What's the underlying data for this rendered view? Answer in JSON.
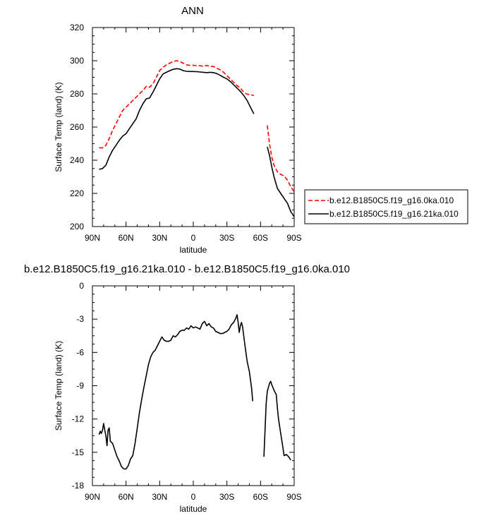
{
  "chart_data": [
    {
      "type": "line",
      "title": "ANN",
      "xlabel": "latitude",
      "ylabel": "Surface Temp (land) (K)",
      "xlim": [
        90,
        -90
      ],
      "ylim": [
        200,
        320
      ],
      "x_ticks": [
        90,
        60,
        30,
        0,
        -30,
        -60,
        -90
      ],
      "x_tick_labels": [
        "90N",
        "60N",
        "30N",
        "0",
        "30S",
        "60S",
        "90S"
      ],
      "y_ticks": [
        200,
        220,
        240,
        260,
        280,
        300,
        320
      ],
      "y_tick_labels": [
        "200",
        "220",
        "240",
        "260",
        "280",
        "300",
        "320"
      ],
      "legend_position": "right",
      "series": [
        {
          "name": "b.e12.B1850C5.f19_g16.0ka.010",
          "color": "#ff0000",
          "style": "dashed",
          "segments": [
            [
              [
                84,
                247.5
              ],
              [
                81,
                247.5
              ],
              [
                78,
                249
              ],
              [
                75,
                253
              ],
              [
                72,
                258
              ],
              [
                69,
                262
              ],
              [
                66,
                266
              ],
              [
                63,
                270
              ],
              [
                60,
                272
              ],
              [
                57,
                274
              ],
              [
                54,
                276
              ],
              [
                51,
                278
              ],
              [
                48,
                280
              ],
              [
                45,
                282
              ],
              [
                42,
                284.5
              ],
              [
                39,
                284
              ],
              [
                36,
                286
              ],
              [
                33,
                290
              ],
              [
                30,
                294
              ],
              [
                27,
                296
              ],
              [
                24,
                297.5
              ],
              [
                21,
                298.5
              ],
              [
                18,
                299.5
              ],
              [
                15,
                300
              ],
              [
                12,
                299.5
              ],
              [
                9,
                298.5
              ],
              [
                6,
                297.5
              ],
              [
                3,
                297.2
              ],
              [
                0,
                297.2
              ],
              [
                -3,
                297
              ],
              [
                -6,
                297
              ],
              [
                -9,
                296.5
              ],
              [
                -12,
                297.2
              ],
              [
                -15,
                296.5
              ],
              [
                -18,
                296.5
              ],
              [
                -21,
                295.5
              ],
              [
                -24,
                294.5
              ],
              [
                -27,
                293
              ],
              [
                -30,
                291
              ],
              [
                -33,
                289
              ],
              [
                -36,
                287
              ],
              [
                -39,
                285
              ],
              [
                -42,
                283.5
              ],
              [
                -45,
                281
              ],
              [
                -48,
                279.8
              ],
              [
                -51,
                279.5
              ],
              [
                -54,
                279
              ]
            ],
            [
              [
                -66,
                261
              ],
              [
                -68,
                250
              ],
              [
                -70,
                242
              ],
              [
                -72,
                237
              ],
              [
                -75,
                233
              ],
              [
                -78,
                231.5
              ],
              [
                -81,
                230.5
              ],
              [
                -84,
                228
              ],
              [
                -87,
                224
              ],
              [
                -90,
                221
              ]
            ]
          ]
        },
        {
          "name": "b.e12.B1850C5.f19_g16.21ka.010",
          "color": "#000000",
          "style": "solid",
          "segments": [
            [
              [
                84,
                234.5
              ],
              [
                81,
                235
              ],
              [
                78,
                237
              ],
              [
                75,
                242
              ],
              [
                72,
                246
              ],
              [
                69,
                249
              ],
              [
                66,
                252
              ],
              [
                63,
                254.5
              ],
              [
                60,
                256
              ],
              [
                57,
                259
              ],
              [
                54,
                262
              ],
              [
                51,
                265
              ],
              [
                48,
                270
              ],
              [
                45,
                274
              ],
              [
                42,
                277
              ],
              [
                39,
                277.5
              ],
              [
                36,
                281
              ],
              [
                33,
                285
              ],
              [
                30,
                289
              ],
              [
                27,
                292
              ],
              [
                24,
                293
              ],
              [
                21,
                294
              ],
              [
                18,
                294.8
              ],
              [
                15,
                295.2
              ],
              [
                12,
                295
              ],
              [
                9,
                294
              ],
              [
                6,
                293.6
              ],
              [
                3,
                293.5
              ],
              [
                0,
                293.5
              ],
              [
                -3,
                293.4
              ],
              [
                -6,
                293.2
              ],
              [
                -9,
                293
              ],
              [
                -12,
                292.8
              ],
              [
                -15,
                293
              ],
              [
                -18,
                292.8
              ],
              [
                -21,
                292.2
              ],
              [
                -24,
                291.2
              ],
              [
                -27,
                290
              ],
              [
                -30,
                289
              ],
              [
                -33,
                287.5
              ],
              [
                -36,
                285.5
              ],
              [
                -39,
                283.5
              ],
              [
                -42,
                281.5
              ],
              [
                -45,
                279
              ],
              [
                -48,
                276
              ],
              [
                -51,
                272
              ],
              [
                -54,
                268
              ]
            ],
            [
              [
                -66,
                248
              ],
              [
                -68,
                243
              ],
              [
                -70,
                236
              ],
              [
                -72,
                230
              ],
              [
                -75,
                223
              ],
              [
                -78,
                220
              ],
              [
                -81,
                217
              ],
              [
                -84,
                214
              ],
              [
                -87,
                209
              ],
              [
                -90,
                206
              ]
            ]
          ]
        }
      ]
    },
    {
      "type": "line",
      "title": "b.e12.B1850C5.f19_g16.21ka.010 - b.e12.B1850C5.f19_g16.0ka.010",
      "xlabel": "latitude",
      "ylabel": "Surface Temp (land) (K)",
      "xlim": [
        90,
        -90
      ],
      "ylim": [
        -18,
        0
      ],
      "x_ticks": [
        90,
        60,
        30,
        0,
        -30,
        -60,
        -90
      ],
      "x_tick_labels": [
        "90N",
        "60N",
        "30N",
        "0",
        "30S",
        "60S",
        "90S"
      ],
      "y_ticks": [
        -18,
        -15,
        -12,
        -9,
        -6,
        -3,
        0
      ],
      "y_tick_labels": [
        "-18",
        "-15",
        "-12",
        "-9",
        "-6",
        "-3",
        "0"
      ],
      "series": [
        {
          "color": "#000000",
          "style": "solid",
          "segments": [
            [
              [
                84,
                -13.4
              ],
              [
                83,
                -13.1
              ],
              [
                82,
                -13.3
              ],
              [
                81,
                -13
              ],
              [
                80,
                -12.4
              ],
              [
                79,
                -13
              ],
              [
                78,
                -13.5
              ],
              [
                77,
                -14.4
              ],
              [
                76,
                -13
              ],
              [
                75,
                -12.8
              ],
              [
                74,
                -14
              ],
              [
                73,
                -14.1
              ],
              [
                72,
                -14.2
              ],
              [
                70,
                -14.8
              ],
              [
                68,
                -15.4
              ],
              [
                66,
                -15.8
              ],
              [
                64,
                -16.3
              ],
              [
                62,
                -16.5
              ],
              [
                60,
                -16.5
              ],
              [
                58,
                -16.2
              ],
              [
                56,
                -15.6
              ],
              [
                54,
                -15.3
              ],
              [
                52,
                -14.2
              ],
              [
                50,
                -12.8
              ],
              [
                48,
                -11.4
              ],
              [
                46,
                -10.2
              ],
              [
                44,
                -9.1
              ],
              [
                42,
                -8.1
              ],
              [
                40,
                -7.1
              ],
              [
                38,
                -6.4
              ],
              [
                36,
                -6
              ],
              [
                34,
                -5.8
              ],
              [
                32,
                -5.4
              ],
              [
                30,
                -5
              ],
              [
                28,
                -4.6
              ],
              [
                26,
                -4.9
              ],
              [
                24,
                -5
              ],
              [
                22,
                -5
              ],
              [
                20,
                -4.9
              ],
              [
                18,
                -4.5
              ],
              [
                16,
                -4.6
              ],
              [
                14,
                -4.4
              ],
              [
                12,
                -4.1
              ],
              [
                10,
                -4
              ],
              [
                8,
                -4
              ],
              [
                6,
                -3.8
              ],
              [
                4,
                -3.9
              ],
              [
                2,
                -3.6
              ],
              [
                0,
                -3.8
              ],
              [
                -2,
                -3.7
              ],
              [
                -4,
                -3.8
              ],
              [
                -6,
                -3.9
              ],
              [
                -8,
                -3.4
              ],
              [
                -10,
                -3.2
              ],
              [
                -12,
                -3.6
              ],
              [
                -14,
                -3.4
              ],
              [
                -16,
                -3.7
              ],
              [
                -18,
                -3.8
              ],
              [
                -20,
                -4.1
              ],
              [
                -22,
                -4.2
              ],
              [
                -24,
                -4.3
              ],
              [
                -26,
                -4.3
              ],
              [
                -28,
                -4.2
              ],
              [
                -30,
                -4.1
              ],
              [
                -32,
                -3.9
              ],
              [
                -34,
                -3.5
              ],
              [
                -36,
                -3.3
              ],
              [
                -38,
                -2.9
              ],
              [
                -39,
                -2.6
              ],
              [
                -40,
                -3.3
              ],
              [
                -41,
                -4.2
              ],
              [
                -42,
                -3.6
              ],
              [
                -43,
                -3.3
              ],
              [
                -44,
                -3.7
              ],
              [
                -46,
                -5.3
              ],
              [
                -48,
                -6.8
              ],
              [
                -50,
                -7.7
              ],
              [
                -52,
                -9.2
              ],
              [
                -53,
                -10.4
              ]
            ],
            [
              [
                -63,
                -15.4
              ],
              [
                -64,
                -13
              ],
              [
                -65,
                -10.6
              ],
              [
                -66,
                -9.5
              ],
              [
                -68,
                -8.8
              ],
              [
                -69,
                -8.6
              ],
              [
                -70,
                -8.9
              ],
              [
                -72,
                -9.4
              ],
              [
                -74,
                -9.8
              ],
              [
                -75,
                -11
              ],
              [
                -76,
                -12
              ],
              [
                -78,
                -13.3
              ],
              [
                -80,
                -14.6
              ],
              [
                -81,
                -15.3
              ],
              [
                -83,
                -15.2
              ],
              [
                -85,
                -15.4
              ],
              [
                -87,
                -15.7
              ]
            ]
          ]
        }
      ]
    }
  ]
}
